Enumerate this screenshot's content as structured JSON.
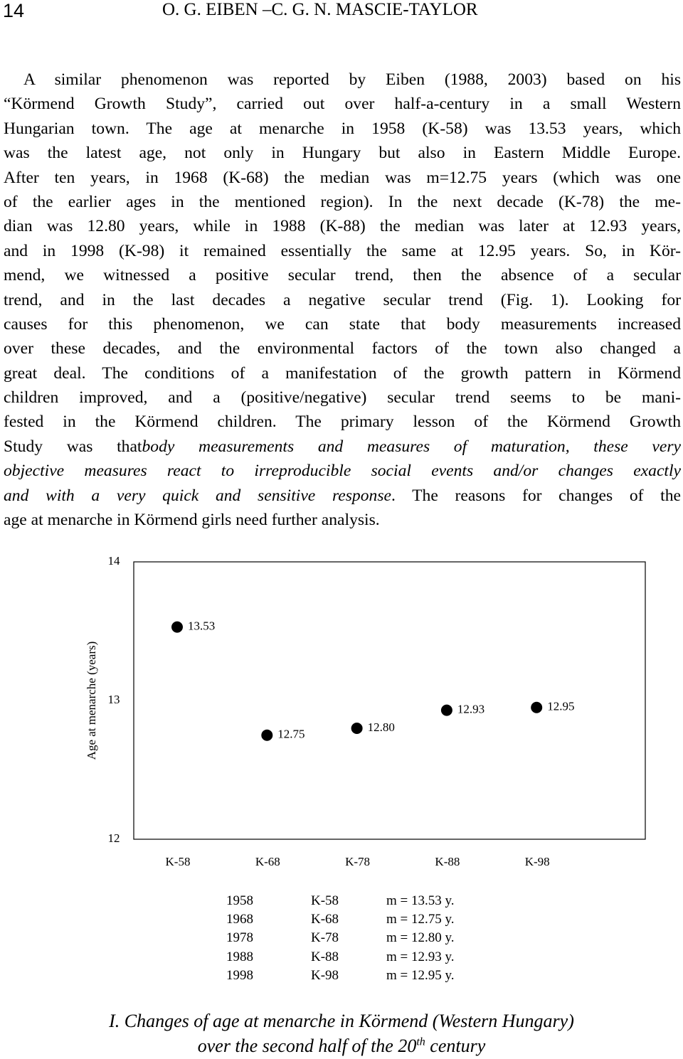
{
  "header": {
    "page_number": "14",
    "authors": "O. G. EIBEN –C. G. N. MASCIE-TAYLOR"
  },
  "paragraph": {
    "lines": [
      [
        "A similar phenomenon was reported by Eiben (1988, 2003) based on his"
      ],
      [
        "“Körmend Growth Study”, carried out over half-a-century in a small Western"
      ],
      [
        "Hungarian town. The age at menarche in 1958 (K-58) was 13.53 years, which"
      ],
      [
        "was the latest age, not only in Hungary but also in Eastern Middle Europe."
      ],
      [
        "After ten years, in 1968 (K-68) the median was m=12.75 years (which was one"
      ],
      [
        "of the earlier ages in the mentioned region). In the next decade (K-78) the me-"
      ],
      [
        "dian was 12.80 years, while in 1988 (K-88) the median was later at 12.93 years,"
      ],
      [
        "and in 1998 (K-98) it remained essentially the same at 12.95 years. So, in Kör-"
      ],
      [
        "mend, we witnessed a positive secular trend, then the absence of a secular"
      ],
      [
        "trend, and in the last decades a negative secular trend (Fig. 1). Looking for"
      ],
      [
        "causes for this phenomenon, we can state that body measurements increased"
      ],
      [
        "over these decades, and the environmental factors of the town also changed a"
      ],
      [
        "great deal. The conditions of a manifestation of the growth pattern in Körmend"
      ],
      [
        "children improved, and a (positive/negative) secular trend seems to be mani-"
      ],
      [
        "fested in the Körmend children. The primary lesson of the Körmend Growth"
      ],
      [
        "Study was that",
        {
          "italic": "body measurements and measures of maturation, these very"
        }
      ],
      [
        {
          "italic": "objective measures react to irreproducible social events and/or changes exactly"
        }
      ],
      [
        {
          "italic": "and with a very quick and sensitive response"
        },
        ". The reasons for changes of the"
      ],
      [
        "age at menarche in Körmend girls need further analysis."
      ]
    ]
  },
  "chart_data": {
    "type": "dot",
    "ylabel": "Age at menarche (years)",
    "categories": [
      "K-58",
      "K-68",
      "K-78",
      "K-88",
      "K-98"
    ],
    "values": [
      13.53,
      12.75,
      12.8,
      12.93,
      12.95
    ],
    "value_labels": [
      "13.53",
      "12.75",
      "12.80",
      "12.93",
      "12.95"
    ],
    "color": "#000000",
    "ylim": [
      12,
      14
    ],
    "yticks": [
      12,
      13,
      14
    ]
  },
  "table": {
    "rows": [
      [
        "1958",
        "K-58",
        "m = 13.53 y."
      ],
      [
        "1968",
        "K-68",
        "m = 12.75 y."
      ],
      [
        "1978",
        "K-78",
        "m = 12.80 y."
      ],
      [
        "1988",
        "K-88",
        "m = 12.93 y."
      ],
      [
        "1998",
        "K-98",
        "m = 12.95 y."
      ]
    ]
  },
  "caption": {
    "lines": [
      [
        "I. Changes of age at menarche in Körmend (Western Hungary)"
      ],
      [
        "over the second half of the 20",
        {
          "sup": "th"
        },
        " century"
      ]
    ]
  }
}
